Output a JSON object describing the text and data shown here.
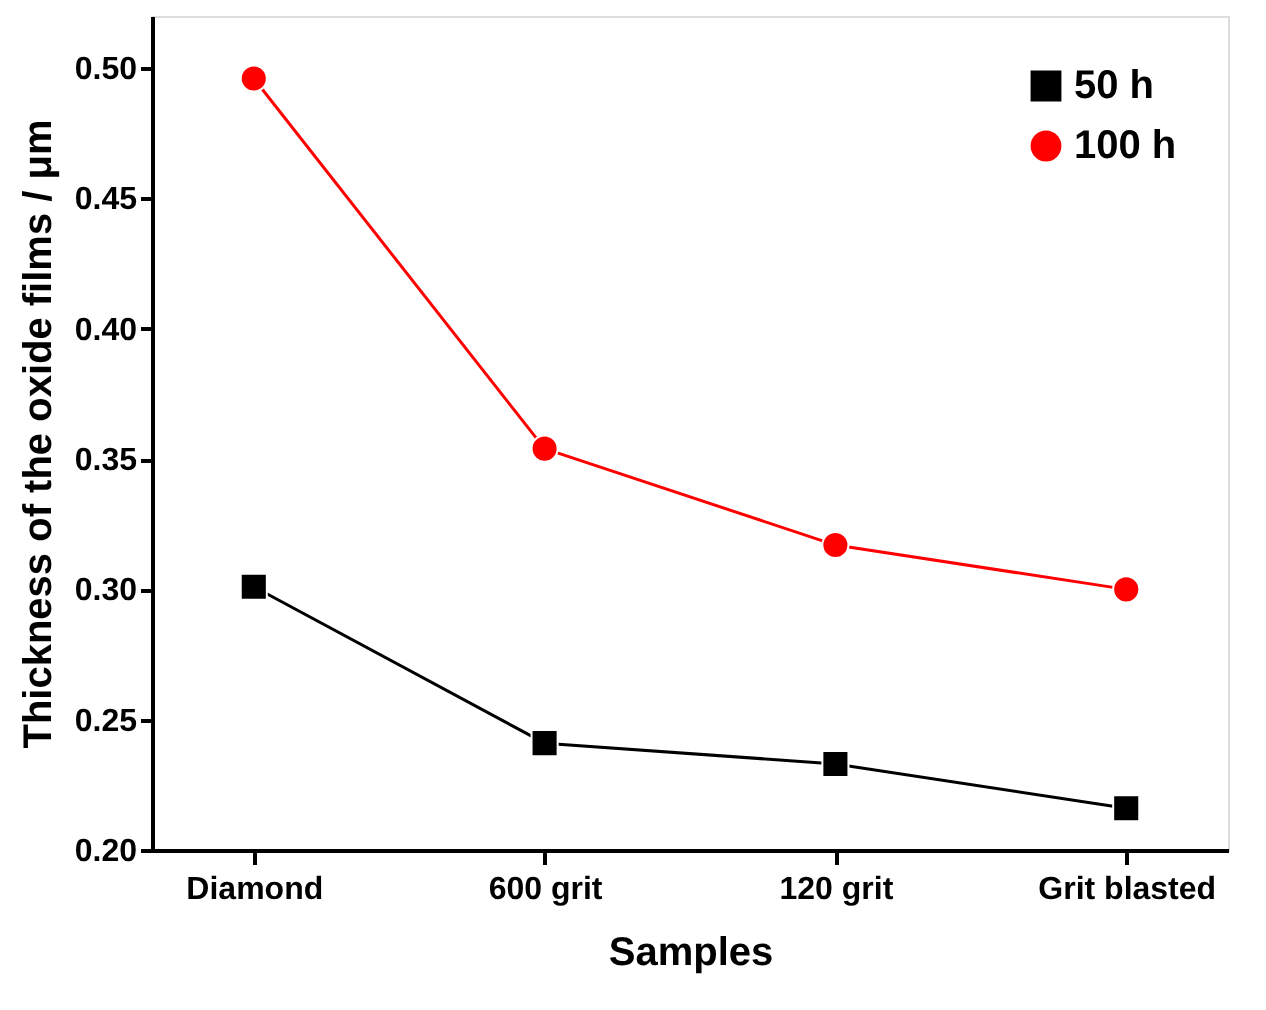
{
  "chart_data": {
    "type": "line",
    "xlabel": "Samples",
    "ylabel": "Thickness of the oxide films / μm",
    "categories": [
      "Diamond",
      "600 grit",
      "120 grit",
      "Grit blasted"
    ],
    "series": [
      {
        "name": "50 h",
        "color": "#000000",
        "marker": "square",
        "values": [
          0.301,
          0.241,
          0.233,
          0.216
        ]
      },
      {
        "name": "100 h",
        "color": "#ff0000",
        "marker": "circle",
        "values": [
          0.496,
          0.354,
          0.317,
          0.3
        ]
      }
    ],
    "ylim": [
      0.2,
      0.52
    ],
    "yticks": [
      {
        "value": 0.2,
        "label": "0.20"
      },
      {
        "value": 0.25,
        "label": "0.25"
      },
      {
        "value": 0.3,
        "label": "0.30"
      },
      {
        "value": 0.35,
        "label": "0.35"
      },
      {
        "value": 0.4,
        "label": "0.40"
      },
      {
        "value": 0.45,
        "label": "0.45"
      },
      {
        "value": 0.5,
        "label": "0.50"
      }
    ],
    "grid": false,
    "legend": "top right",
    "line_style": "solid"
  }
}
